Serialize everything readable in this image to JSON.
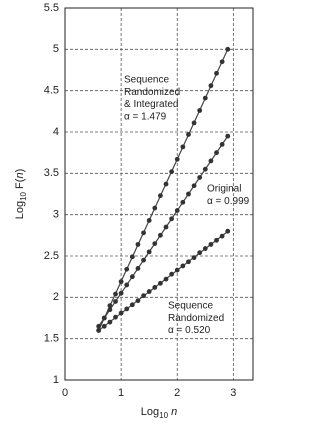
{
  "chart_data": {
    "type": "scatter",
    "xlabel": [
      "Log",
      "10",
      " ",
      "n"
    ],
    "ylabel": [
      "Log",
      "10",
      " F(",
      "n",
      ")"
    ],
    "xlim": [
      0,
      3.35
    ],
    "ylim": [
      1,
      5.5
    ],
    "xticks": [
      0,
      1,
      2,
      3
    ],
    "yticks": [
      1,
      1.5,
      2,
      2.5,
      3,
      3.5,
      4,
      4.5,
      5,
      5.5
    ],
    "grid": true,
    "fit_lines": true,
    "x": [
      0.6,
      0.7,
      0.8,
      0.9,
      1.0,
      1.1,
      1.2,
      1.3,
      1.4,
      1.5,
      1.6,
      1.7,
      1.8,
      1.9,
      2.0,
      2.1,
      2.2,
      2.3,
      2.4,
      2.5,
      2.6,
      2.7,
      2.8,
      2.9
    ],
    "series": [
      {
        "color": "#333333",
        "values": [
          1.6,
          1.75,
          1.9,
          2.04,
          2.19,
          2.34,
          2.49,
          2.64,
          2.78,
          2.93,
          3.08,
          3.23,
          3.37,
          3.52,
          3.67,
          3.82,
          3.97,
          4.11,
          4.26,
          4.41,
          4.56,
          4.71,
          4.85,
          5.0
        ]
      },
      {
        "color": "#333333",
        "values": [
          1.65,
          1.75,
          1.85,
          1.95,
          2.05,
          2.15,
          2.25,
          2.35,
          2.45,
          2.55,
          2.65,
          2.75,
          2.85,
          2.95,
          3.05,
          3.15,
          3.25,
          3.35,
          3.45,
          3.55,
          3.65,
          3.75,
          3.85,
          3.95
        ]
      },
      {
        "color": "#333333",
        "values": [
          1.6,
          1.65,
          1.7,
          1.76,
          1.81,
          1.86,
          1.91,
          1.96,
          2.02,
          2.07,
          2.12,
          2.17,
          2.22,
          2.28,
          2.33,
          2.38,
          2.43,
          2.48,
          2.54,
          2.59,
          2.64,
          2.69,
          2.74,
          2.8
        ]
      }
    ],
    "annotations": [
      {
        "lines": [
          "Sequence",
          "Randomized",
          "& Integrated",
          "α = 1.479"
        ]
      },
      {
        "lines": [
          "Original",
          "α = 0.999"
        ]
      },
      {
        "lines": [
          "Sequence",
          "Randomized",
          "α = 0.520"
        ]
      }
    ]
  }
}
